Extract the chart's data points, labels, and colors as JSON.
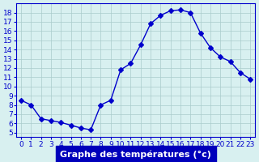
{
  "hours": [
    0,
    1,
    2,
    3,
    4,
    5,
    6,
    7,
    8,
    9,
    10,
    11,
    12,
    13,
    14,
    15,
    16,
    17,
    18,
    19,
    20,
    21,
    22,
    23
  ],
  "temperatures": [
    8.5,
    8.0,
    6.5,
    6.3,
    6.1,
    5.8,
    5.5,
    5.3,
    8.0,
    8.5,
    11.8,
    12.5,
    14.5,
    16.8,
    17.7,
    18.2,
    18.3,
    18.0,
    15.8,
    14.2,
    13.2,
    12.7,
    11.5,
    10.8
  ],
  "line_color": "#0000cc",
  "marker": "D",
  "marker_size": 3,
  "bg_color": "#d8f0f0",
  "grid_color": "#aacccc",
  "xlabel": "Graphe des températures (°c)",
  "xlabel_color": "#0000cc",
  "xlabel_bg": "#0000aa",
  "ylim": [
    4.5,
    19
  ],
  "xlim": [
    -0.5,
    23.5
  ],
  "yticks": [
    5,
    6,
    7,
    8,
    9,
    10,
    11,
    12,
    13,
    14,
    15,
    16,
    17,
    18
  ],
  "xticks": [
    0,
    1,
    2,
    3,
    4,
    5,
    6,
    7,
    8,
    9,
    10,
    11,
    12,
    13,
    14,
    15,
    16,
    17,
    18,
    19,
    20,
    21,
    22,
    23
  ],
  "tick_color": "#0000cc",
  "tick_label_fontsize": 6.5,
  "axis_label_fontsize": 8
}
